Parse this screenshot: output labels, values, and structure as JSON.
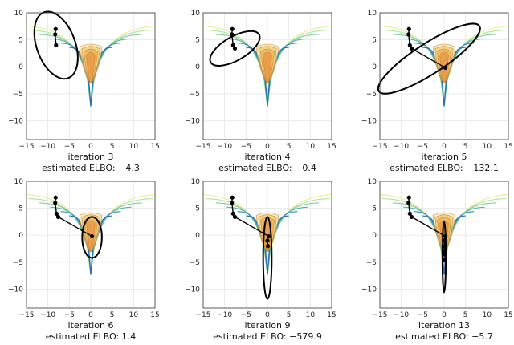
{
  "chart_data": [
    {
      "type": "scatter",
      "iteration_label": "iteration 3",
      "elbo_label": "estimated ELBO: −4.3",
      "x_ticks": [
        -15,
        -10,
        -5,
        0,
        5,
        10,
        15
      ],
      "y_ticks": [
        10,
        5,
        0,
        -5,
        -10
      ],
      "xlim": [
        -15,
        15
      ],
      "ylim": [
        -13.5,
        10
      ],
      "grid": true,
      "path": [
        [
          -8.2,
          7.0
        ],
        [
          -8.3,
          6.0
        ],
        [
          -8.1,
          4.0
        ]
      ],
      "ellipse": {
        "center": [
          -8.1,
          4.0
        ],
        "rx": 4.5,
        "ry": 6.5,
        "angle_deg": -20
      }
    },
    {
      "type": "scatter",
      "iteration_label": "iteration 4",
      "elbo_label": "estimated ELBO: −0.4",
      "x_ticks": [
        -15,
        -10,
        -5,
        0,
        5,
        10,
        15
      ],
      "y_ticks": [
        10,
        5,
        0,
        -5,
        -10
      ],
      "xlim": [
        -15,
        15
      ],
      "ylim": [
        -13.5,
        10
      ],
      "grid": true,
      "path": [
        [
          -8.2,
          7.0
        ],
        [
          -8.3,
          6.0
        ],
        [
          -8.0,
          4.0
        ],
        [
          -7.6,
          3.4
        ]
      ],
      "ellipse": {
        "center": [
          -7.6,
          3.4
        ],
        "rx": 6.5,
        "ry": 2.2,
        "angle_deg": -30
      }
    },
    {
      "type": "scatter",
      "iteration_label": "iteration 5",
      "elbo_label": "estimated ELBO: −132.1",
      "x_ticks": [
        -15,
        -10,
        -5,
        0,
        5,
        10,
        15
      ],
      "y_ticks": [
        10,
        5,
        0,
        -5,
        -10
      ],
      "xlim": [
        -15,
        15
      ],
      "ylim": [
        -13.5,
        10
      ],
      "grid": true,
      "path": [
        [
          -8.2,
          7.0
        ],
        [
          -8.3,
          6.0
        ],
        [
          -8.0,
          4.0
        ],
        [
          -7.6,
          3.4
        ],
        [
          0.3,
          -0.2
        ]
      ],
      "ellipse": {
        "center": [
          -3.5,
          1.5
        ],
        "rx": 14.0,
        "ry": 2.8,
        "angle_deg": -33
      }
    },
    {
      "type": "scatter",
      "iteration_label": "iteration 6",
      "elbo_label": "estimated ELBO: 1.4",
      "x_ticks": [
        -15,
        -10,
        -5,
        0,
        5,
        10,
        15
      ],
      "y_ticks": [
        10,
        5,
        0,
        -5,
        -10
      ],
      "xlim": [
        -15,
        15
      ],
      "ylim": [
        -13.5,
        10
      ],
      "grid": true,
      "path": [
        [
          -8.2,
          7.0
        ],
        [
          -8.3,
          6.0
        ],
        [
          -8.0,
          4.0
        ],
        [
          -7.6,
          3.4
        ],
        [
          0.3,
          -0.2
        ]
      ],
      "ellipse": {
        "center": [
          0.3,
          -0.4
        ],
        "rx": 2.3,
        "ry": 3.8,
        "angle_deg": 0
      }
    },
    {
      "type": "scatter",
      "iteration_label": "iteration 9",
      "elbo_label": "estimated ELBO: −579.9",
      "x_ticks": [
        -15,
        -10,
        -5,
        0,
        5,
        10,
        15
      ],
      "y_ticks": [
        10,
        5,
        0,
        -5,
        -10
      ],
      "xlim": [
        -15,
        15
      ],
      "ylim": [
        -13.5,
        10
      ],
      "grid": true,
      "path": [
        [
          -8.2,
          7.0
        ],
        [
          -8.3,
          6.0
        ],
        [
          -8.0,
          4.0
        ],
        [
          -7.6,
          3.4
        ],
        [
          0.3,
          -0.2
        ],
        [
          0.0,
          -1.0
        ],
        [
          0.1,
          -2.0
        ]
      ],
      "ellipse": {
        "center": [
          0.0,
          -4.2
        ],
        "rx": 1.0,
        "ry": 7.6,
        "angle_deg": 0
      }
    },
    {
      "type": "scatter",
      "iteration_label": "iteration 13",
      "elbo_label": "estimated ELBO: −5.7",
      "x_ticks": [
        -15,
        -10,
        -5,
        0,
        5,
        10,
        15
      ],
      "y_ticks": [
        10,
        5,
        0,
        -5,
        -10
      ],
      "xlim": [
        -15,
        15
      ],
      "ylim": [
        -13.5,
        10
      ],
      "grid": true,
      "path": [
        [
          -8.2,
          7.0
        ],
        [
          -8.3,
          6.0
        ],
        [
          -8.0,
          4.0
        ],
        [
          -7.6,
          3.4
        ],
        [
          0.3,
          -0.2
        ],
        [
          0.0,
          -1.0
        ],
        [
          0.1,
          -2.0
        ],
        [
          0.0,
          -2.8
        ],
        [
          0.05,
          -3.5
        ],
        [
          0.0,
          -4.5
        ]
      ],
      "ellipse": {
        "center": [
          0.0,
          -4.0
        ],
        "rx": 0.4,
        "ry": 6.6,
        "angle_deg": 0
      }
    }
  ],
  "colors": {
    "grid": "#e6e6e6",
    "axis": "#333333",
    "path": "#000000",
    "contours": [
      "#e9ef9a",
      "#b6e29a",
      "#7ecfa6",
      "#48b6b4",
      "#2f8fb5",
      "#2d6aa9",
      "#f0df8a",
      "#f2c061",
      "#eaa24a",
      "#e6893b"
    ]
  }
}
